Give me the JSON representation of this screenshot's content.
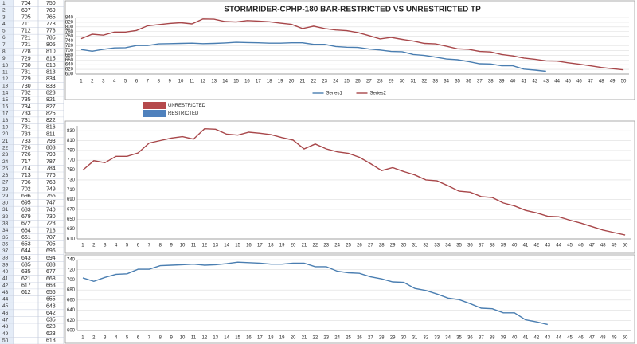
{
  "chart_data": [
    {
      "type": "line",
      "title": "STORMRIDER-CPHP-180 BAR-RESTRICTED VS UNRESTRICTED TP",
      "categories": [
        1,
        2,
        3,
        4,
        5,
        6,
        7,
        8,
        9,
        10,
        11,
        12,
        13,
        14,
        15,
        16,
        17,
        18,
        19,
        20,
        21,
        22,
        23,
        24,
        25,
        26,
        27,
        28,
        29,
        30,
        31,
        32,
        33,
        34,
        35,
        36,
        37,
        38,
        39,
        40,
        41,
        42,
        43,
        44,
        45,
        46,
        47,
        48,
        49,
        50
      ],
      "series": [
        {
          "name": "Series1",
          "color": "#4a7eb1",
          "values": [
            704,
            697,
            705,
            711,
            712,
            721,
            721,
            728,
            729,
            730,
            731,
            729,
            730,
            732,
            735,
            734,
            733,
            731,
            731,
            733,
            733,
            726,
            726,
            717,
            714,
            713,
            706,
            702,
            696,
            695,
            683,
            679,
            672,
            664,
            661,
            653,
            644,
            643,
            635,
            635,
            621,
            617,
            612,
            null,
            null,
            null,
            null,
            null,
            null,
            null
          ]
        },
        {
          "name": "Series2",
          "color": "#a8474a",
          "values": [
            750,
            769,
            765,
            778,
            778,
            785,
            805,
            810,
            815,
            818,
            813,
            834,
            833,
            823,
            821,
            827,
            825,
            822,
            816,
            811,
            793,
            803,
            793,
            787,
            784,
            776,
            763,
            749,
            755,
            747,
            740,
            730,
            728,
            718,
            707,
            705,
            696,
            694,
            683,
            677,
            668,
            663,
            656,
            655,
            648,
            642,
            635,
            628,
            623,
            618
          ]
        }
      ],
      "ylim": [
        600,
        840
      ],
      "yticks": [
        600,
        620,
        640,
        660,
        680,
        700,
        720,
        740,
        760,
        780,
        800,
        820,
        840
      ],
      "grid": true,
      "legend": "bottom"
    },
    {
      "type": "line",
      "categories": [
        1,
        2,
        3,
        4,
        5,
        6,
        7,
        8,
        9,
        10,
        11,
        12,
        13,
        14,
        15,
        16,
        17,
        18,
        19,
        20,
        21,
        22,
        23,
        24,
        25,
        26,
        27,
        28,
        29,
        30,
        31,
        32,
        33,
        34,
        35,
        36,
        37,
        38,
        39,
        40,
        41,
        42,
        43,
        44,
        45,
        46,
        47,
        48,
        49,
        50
      ],
      "series": [
        {
          "color": "#a8474a",
          "values": [
            750,
            769,
            765,
            778,
            778,
            785,
            805,
            810,
            815,
            818,
            813,
            834,
            833,
            823,
            821,
            827,
            825,
            822,
            816,
            811,
            793,
            803,
            793,
            787,
            784,
            776,
            763,
            749,
            755,
            747,
            740,
            730,
            728,
            718,
            707,
            705,
            696,
            694,
            683,
            677,
            668,
            663,
            656,
            655,
            648,
            642,
            635,
            628,
            623,
            618
          ]
        }
      ],
      "ylim": [
        610,
        840
      ],
      "yticks": [
        610,
        630,
        650,
        670,
        690,
        710,
        730,
        750,
        770,
        790,
        810,
        830
      ],
      "grid": true
    },
    {
      "type": "line",
      "categories": [
        1,
        2,
        3,
        4,
        5,
        6,
        7,
        8,
        9,
        10,
        11,
        12,
        13,
        14,
        15,
        16,
        17,
        18,
        19,
        20,
        21,
        22,
        23,
        24,
        25,
        26,
        27,
        28,
        29,
        30,
        31,
        32,
        33,
        34,
        35,
        36,
        37,
        38,
        39,
        40,
        41,
        42,
        43,
        44,
        45,
        46,
        47,
        48,
        49,
        50
      ],
      "series": [
        {
          "color": "#4a7eb1",
          "values": [
            704,
            697,
            705,
            711,
            712,
            721,
            721,
            728,
            729,
            730,
            731,
            729,
            730,
            732,
            735,
            734,
            733,
            731,
            731,
            733,
            733,
            726,
            726,
            717,
            714,
            713,
            706,
            702,
            696,
            695,
            683,
            679,
            672,
            664,
            661,
            653,
            644,
            643,
            635,
            635,
            621,
            617,
            612,
            null,
            null,
            null,
            null,
            null,
            null,
            null
          ]
        }
      ],
      "ylim": [
        600,
        740
      ],
      "yticks": [
        600,
        620,
        640,
        660,
        680,
        700,
        720,
        740
      ],
      "grid": true
    }
  ],
  "legend_box": [
    {
      "name": "UNRESTRICTED",
      "color": "#b5494b"
    },
    {
      "name": "RESTRICTED",
      "color": "#4f81bd"
    }
  ]
}
